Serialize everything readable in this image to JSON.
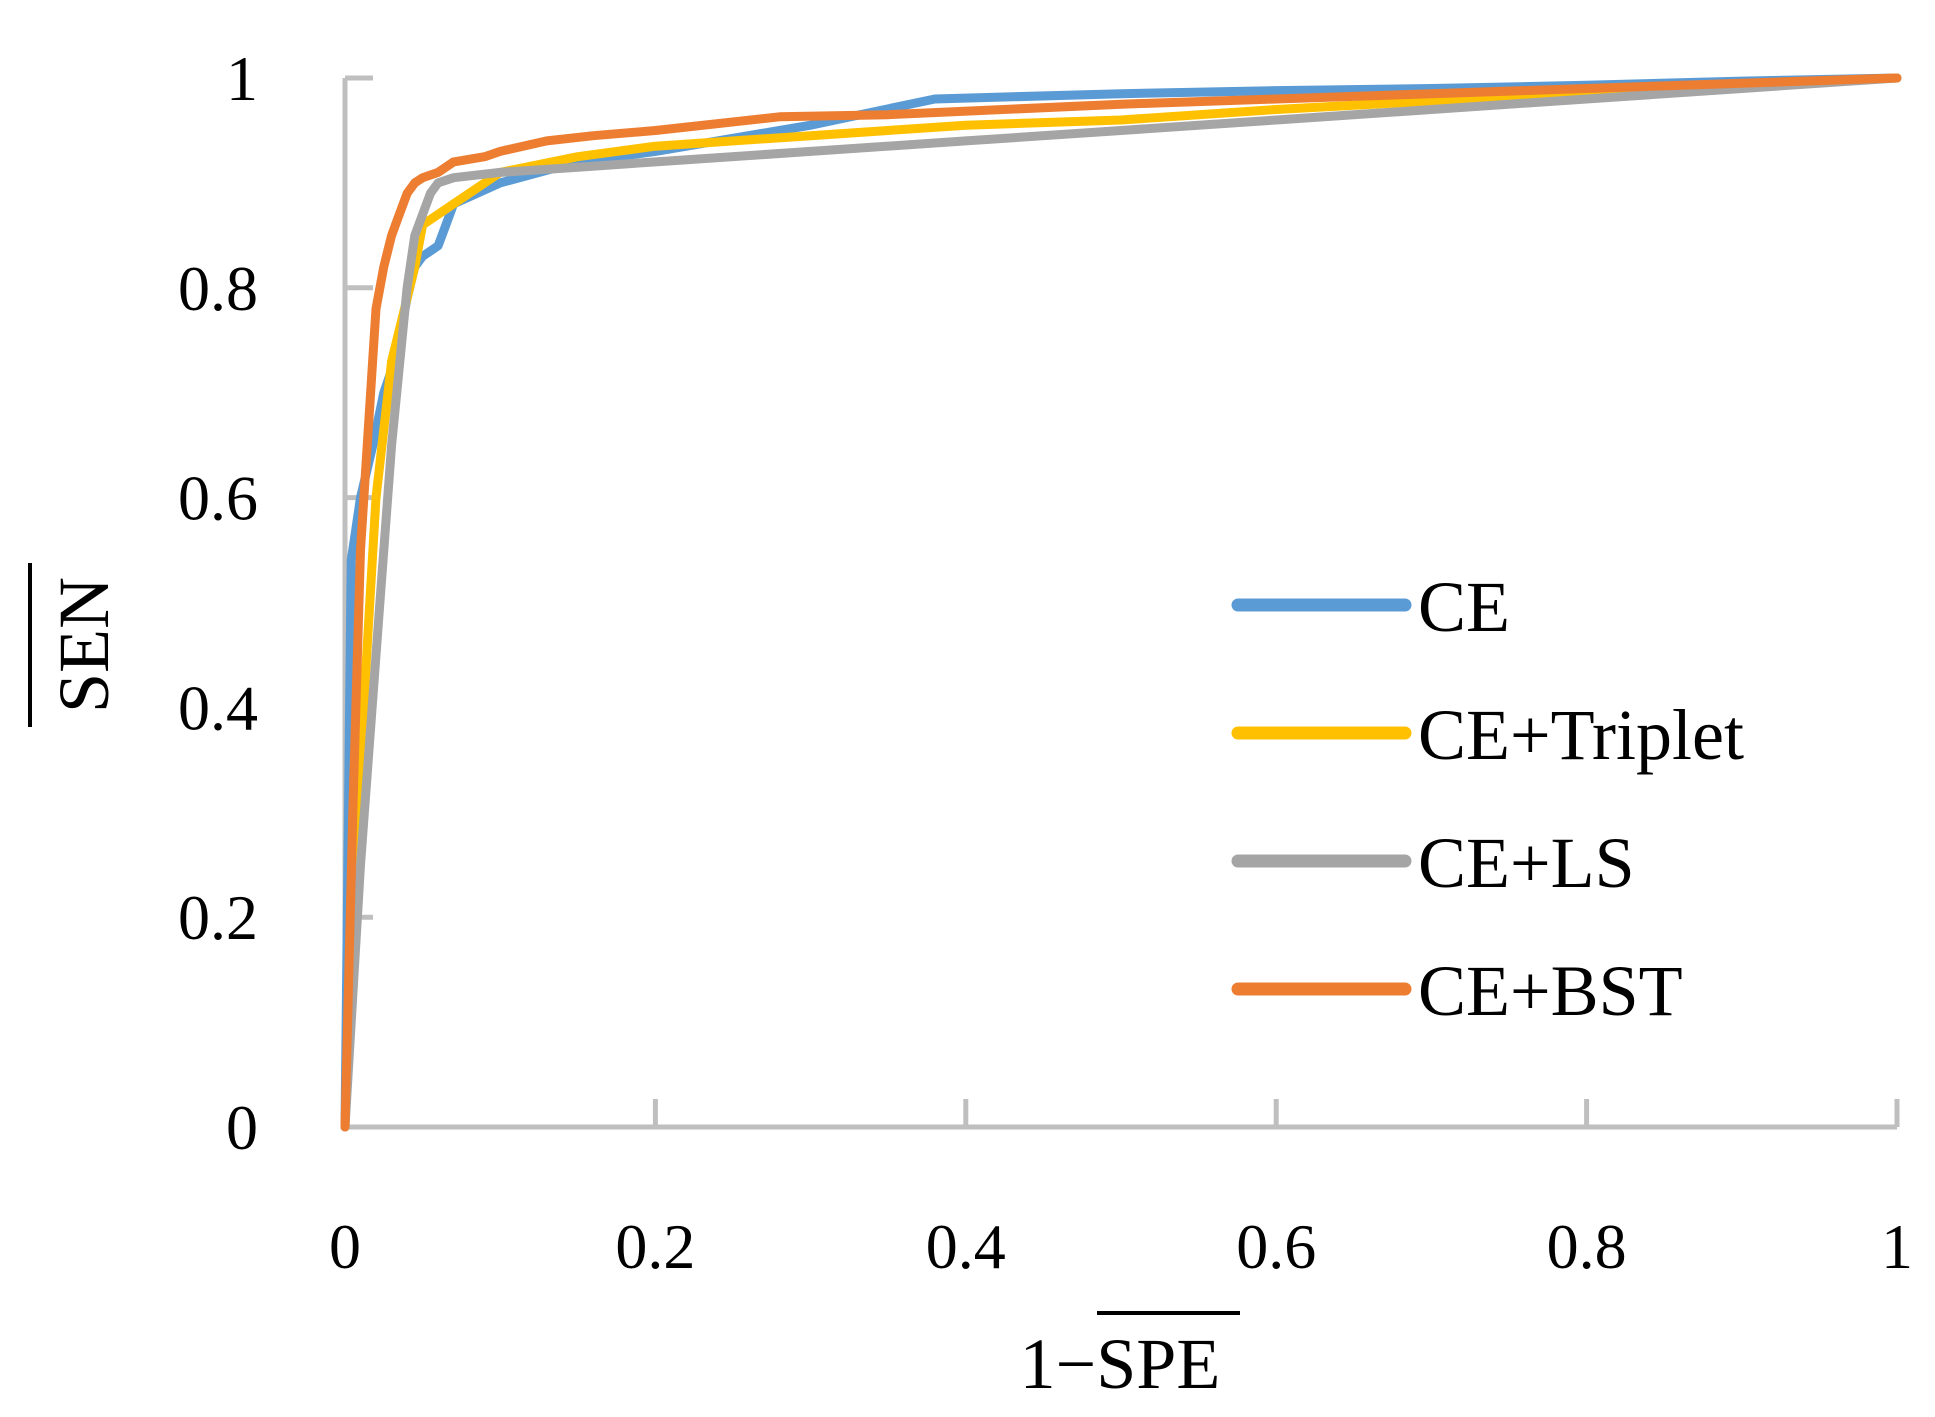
{
  "chart_data": {
    "type": "line",
    "title": "",
    "xlabel": "1−SPE",
    "ylabel": "SEN",
    "xlabel_overline": "SPE",
    "ylabel_overline": "SEN",
    "xlim": [
      0,
      1
    ],
    "ylim": [
      0,
      1
    ],
    "xticks": [
      0,
      0.2,
      0.4,
      0.6,
      0.8,
      1
    ],
    "yticks": [
      0,
      0.2,
      0.4,
      0.6,
      0.8,
      1
    ],
    "xtick_labels": [
      "0",
      "0.2",
      "0.4",
      "0.6",
      "0.8",
      "1"
    ],
    "ytick_labels": [
      "0",
      "0.2",
      "0.4",
      "0.6",
      "0.8",
      "1"
    ],
    "grid": false,
    "legend_position": "right",
    "axis_color": "#bfbfbf",
    "series": [
      {
        "name": "CE",
        "color": "#5b9bd5",
        "x": [
          0,
          0.004,
          0.01,
          0.018,
          0.025,
          0.032,
          0.04,
          0.045,
          0.05,
          0.06,
          0.065,
          0.07,
          0.085,
          0.1,
          0.15,
          0.2,
          0.3,
          0.38,
          0.5,
          0.6,
          0.7,
          0.8,
          0.9,
          1
        ],
        "y": [
          0,
          0.54,
          0.6,
          0.65,
          0.7,
          0.73,
          0.79,
          0.82,
          0.83,
          0.84,
          0.86,
          0.88,
          0.89,
          0.9,
          0.92,
          0.93,
          0.955,
          0.98,
          0.985,
          0.988,
          0.99,
          0.993,
          0.997,
          1
        ]
      },
      {
        "name": "CE+Triplet",
        "color": "#ffc000",
        "x": [
          0,
          0.01,
          0.02,
          0.03,
          0.04,
          0.045,
          0.05,
          0.06,
          0.07,
          0.08,
          0.1,
          0.15,
          0.2,
          0.3,
          0.4,
          0.5,
          0.6,
          0.7,
          0.8,
          0.9,
          1
        ],
        "y": [
          0,
          0.35,
          0.6,
          0.73,
          0.79,
          0.82,
          0.86,
          0.87,
          0.88,
          0.89,
          0.91,
          0.925,
          0.935,
          0.945,
          0.955,
          0.96,
          0.97,
          0.978,
          0.985,
          0.993,
          1
        ]
      },
      {
        "name": "CE+LS",
        "color": "#a5a5a5",
        "x": [
          0,
          0.01,
          0.02,
          0.03,
          0.04,
          0.045,
          0.05,
          0.055,
          0.06,
          0.07,
          0.1,
          0.15,
          0.2,
          0.3,
          0.4,
          0.5,
          0.6,
          0.7,
          0.8,
          0.9,
          1
        ],
        "y": [
          0,
          0.25,
          0.45,
          0.65,
          0.8,
          0.85,
          0.87,
          0.89,
          0.9,
          0.905,
          0.91,
          0.915,
          0.92,
          0.93,
          0.94,
          0.95,
          0.96,
          0.97,
          0.98,
          0.99,
          1
        ]
      },
      {
        "name": "CE+BST",
        "color": "#ed7d31",
        "x": [
          0,
          0.005,
          0.01,
          0.02,
          0.025,
          0.03,
          0.035,
          0.04,
          0.045,
          0.05,
          0.06,
          0.07,
          0.09,
          0.1,
          0.13,
          0.16,
          0.2,
          0.28,
          0.35,
          0.5,
          0.6,
          0.7,
          0.8,
          0.9,
          1
        ],
        "y": [
          0,
          0.3,
          0.55,
          0.78,
          0.82,
          0.85,
          0.87,
          0.89,
          0.9,
          0.905,
          0.91,
          0.92,
          0.925,
          0.93,
          0.94,
          0.945,
          0.95,
          0.963,
          0.965,
          0.975,
          0.98,
          0.985,
          0.99,
          0.995,
          1
        ]
      }
    ]
  }
}
